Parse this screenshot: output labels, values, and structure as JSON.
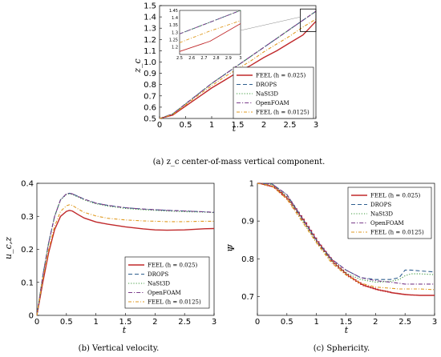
{
  "legend_labels": [
    "FEEL (h = 0.025)",
    "DROPS",
    "NaSt3D",
    "OpenFOAM",
    "FEEL (h = 0.0125)"
  ],
  "colors": {
    "feel": "#c0282a",
    "drops": "#2f5f8f",
    "nast3d": "#3c9a3c",
    "openfoam": "#7a3c8a",
    "feel2": "#e09a20"
  },
  "chart_data": [
    {
      "type": "line",
      "caption": "(a) z_c center-of-mass vertical component.",
      "xlabel": "t",
      "ylabel": "z_c",
      "xlim": [
        0,
        3
      ],
      "ylim": [
        0.5,
        1.5
      ],
      "xticks": [
        0,
        0.5,
        1,
        1.5,
        2,
        2.5,
        3
      ],
      "yticks": [
        0.5,
        0.6,
        0.7,
        0.8,
        0.9,
        1.0,
        1.1,
        1.2,
        1.3,
        1.4,
        1.5
      ],
      "legend_position": "bottom-right",
      "x": [
        0,
        0.25,
        0.5,
        0.75,
        1.0,
        1.25,
        1.5,
        1.75,
        2.0,
        2.25,
        2.5,
        2.75,
        3.0
      ],
      "series": [
        {
          "name": "FEEL (h = 0.025)",
          "values": [
            0.5,
            0.53,
            0.61,
            0.69,
            0.77,
            0.84,
            0.91,
            0.97,
            1.04,
            1.1,
            1.17,
            1.24,
            1.36
          ]
        },
        {
          "name": "DROPS",
          "values": [
            0.5,
            0.54,
            0.63,
            0.72,
            0.81,
            0.89,
            0.97,
            1.05,
            1.13,
            1.21,
            1.29,
            1.37,
            1.45
          ]
        },
        {
          "name": "NaSt3D",
          "values": [
            0.5,
            0.54,
            0.63,
            0.72,
            0.81,
            0.89,
            0.97,
            1.05,
            1.13,
            1.21,
            1.29,
            1.37,
            1.45
          ]
        },
        {
          "name": "OpenFOAM",
          "values": [
            0.5,
            0.54,
            0.63,
            0.72,
            0.81,
            0.89,
            0.97,
            1.05,
            1.13,
            1.21,
            1.29,
            1.37,
            1.45
          ]
        },
        {
          "name": "FEEL (h = 0.0125)",
          "values": [
            0.5,
            0.535,
            0.62,
            0.71,
            0.79,
            0.87,
            0.94,
            1.01,
            1.09,
            1.16,
            1.23,
            1.31,
            1.38
          ]
        }
      ],
      "inset": {
        "xlim": [
          2.5,
          3
        ],
        "ylim": [
          1.15,
          1.45
        ],
        "xticks": [
          2.5,
          2.6,
          2.7,
          2.8,
          2.9,
          3
        ],
        "yticks": [
          1.2,
          1.25,
          1.3,
          1.35,
          1.4,
          1.45
        ]
      }
    },
    {
      "type": "line",
      "caption": "(b) Vertical velocity.",
      "xlabel": "t",
      "ylabel": "u_c,z",
      "xlim": [
        0,
        3
      ],
      "ylim": [
        0,
        0.4
      ],
      "xticks": [
        0,
        0.5,
        1,
        1.5,
        2,
        2.5,
        3
      ],
      "yticks": [
        0,
        0.1,
        0.2,
        0.3,
        0.4
      ],
      "legend_position": "bottom-right",
      "x": [
        0,
        0.1,
        0.2,
        0.3,
        0.4,
        0.5,
        0.55,
        0.6,
        0.7,
        0.8,
        1.0,
        1.2,
        1.5,
        1.8,
        2.0,
        2.2,
        2.5,
        2.8,
        3.0
      ],
      "series": [
        {
          "name": "FEEL (h = 0.025)",
          "values": [
            0,
            0.1,
            0.19,
            0.26,
            0.3,
            0.315,
            0.318,
            0.316,
            0.305,
            0.295,
            0.283,
            0.276,
            0.268,
            0.262,
            0.259,
            0.258,
            0.259,
            0.262,
            0.263
          ]
        },
        {
          "name": "DROPS",
          "values": [
            0,
            0.12,
            0.22,
            0.3,
            0.35,
            0.368,
            0.37,
            0.368,
            0.36,
            0.352,
            0.34,
            0.333,
            0.326,
            0.322,
            0.32,
            0.318,
            0.316,
            0.314,
            0.312
          ]
        },
        {
          "name": "NaSt3D",
          "values": [
            0,
            0.12,
            0.22,
            0.3,
            0.35,
            0.366,
            0.368,
            0.366,
            0.358,
            0.35,
            0.338,
            0.331,
            0.324,
            0.32,
            0.318,
            0.316,
            0.314,
            0.313,
            0.311
          ]
        },
        {
          "name": "OpenFOAM",
          "values": [
            0,
            0.12,
            0.22,
            0.3,
            0.35,
            0.368,
            0.37,
            0.368,
            0.36,
            0.352,
            0.34,
            0.333,
            0.326,
            0.322,
            0.32,
            0.318,
            0.316,
            0.314,
            0.312
          ]
        },
        {
          "name": "FEEL (h = 0.0125)",
          "values": [
            0,
            0.11,
            0.2,
            0.27,
            0.315,
            0.332,
            0.335,
            0.333,
            0.322,
            0.312,
            0.301,
            0.294,
            0.289,
            0.286,
            0.285,
            0.284,
            0.284,
            0.285,
            0.285
          ]
        }
      ]
    },
    {
      "type": "line",
      "caption": "(c) Sphericity.",
      "xlabel": "t",
      "ylabel": "Ψ",
      "xlim": [
        0,
        3
      ],
      "ylim": [
        0.65,
        1.0
      ],
      "xticks": [
        0,
        0.5,
        1,
        1.5,
        2,
        2.5,
        3
      ],
      "yticks": [
        0.7,
        0.8,
        0.9,
        1
      ],
      "legend_position": "top-right",
      "x": [
        0,
        0.25,
        0.5,
        0.75,
        1.0,
        1.25,
        1.5,
        1.75,
        2.0,
        2.25,
        2.4,
        2.5,
        2.6,
        2.75,
        3.0
      ],
      "series": [
        {
          "name": "FEEL (h = 0.025)",
          "values": [
            1.0,
            0.99,
            0.955,
            0.9,
            0.84,
            0.79,
            0.755,
            0.73,
            0.718,
            0.71,
            0.707,
            0.705,
            0.704,
            0.703,
            0.703
          ]
        },
        {
          "name": "DROPS",
          "values": [
            1.0,
            0.998,
            0.97,
            0.91,
            0.85,
            0.8,
            0.77,
            0.75,
            0.745,
            0.745,
            0.75,
            0.77,
            0.77,
            0.768,
            0.765
          ]
        },
        {
          "name": "NaSt3D",
          "values": [
            1.0,
            0.997,
            0.965,
            0.905,
            0.845,
            0.795,
            0.762,
            0.745,
            0.738,
            0.74,
            0.745,
            0.755,
            0.76,
            0.76,
            0.758
          ]
        },
        {
          "name": "OpenFOAM",
          "values": [
            1.0,
            0.998,
            0.97,
            0.91,
            0.85,
            0.8,
            0.77,
            0.75,
            0.742,
            0.738,
            0.735,
            0.733,
            0.733,
            0.733,
            0.733
          ]
        },
        {
          "name": "FEEL (h = 0.0125)",
          "values": [
            1.0,
            0.993,
            0.958,
            0.9,
            0.842,
            0.79,
            0.757,
            0.735,
            0.725,
            0.722,
            0.72,
            0.72,
            0.72,
            0.72,
            0.718
          ]
        }
      ]
    }
  ]
}
